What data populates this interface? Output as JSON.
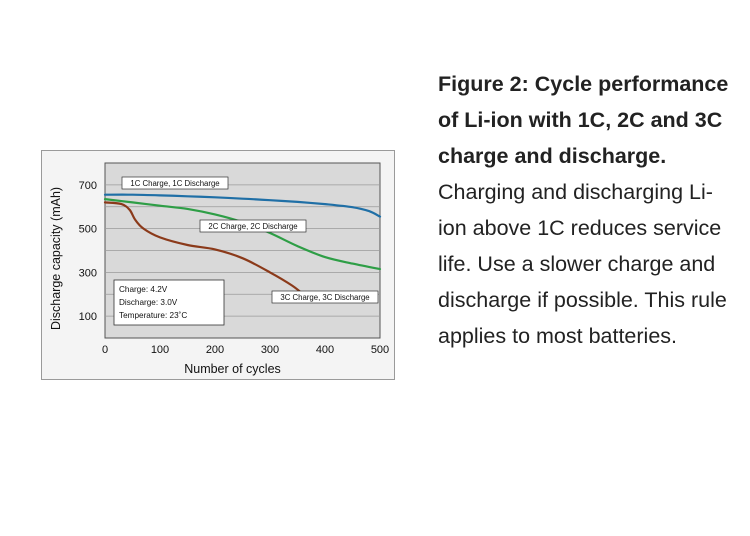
{
  "caption": {
    "bold": "Figure 2: Cycle performance of Li-ion with 1C, 2C and 3C charge and discharge.",
    "body": "Charging and discharging Li-ion above 1C reduces service life. Use a slower charge and discharge if possible. This rule applies to most batteries."
  },
  "chart_data": {
    "type": "line",
    "xlabel": "Number of cycles",
    "ylabel": "Discharge capacity (mAh)",
    "xlim": [
      0,
      500
    ],
    "ylim": [
      0,
      800
    ],
    "xticks": [
      0,
      100,
      200,
      300,
      400,
      500
    ],
    "yticks": [
      100,
      300,
      500,
      700
    ],
    "grid": true,
    "series": [
      {
        "name": "1C Charge, 1C Discharge",
        "color": "#1f6fa6",
        "x": [
          0,
          50,
          100,
          150,
          200,
          250,
          300,
          350,
          400,
          450,
          480,
          500
        ],
        "y": [
          655,
          655,
          652,
          648,
          643,
          637,
          630,
          622,
          612,
          598,
          580,
          555
        ]
      },
      {
        "name": "2C Charge, 2C Discharge",
        "color": "#2e9e46",
        "x": [
          0,
          50,
          100,
          150,
          200,
          250,
          300,
          350,
          400,
          450,
          500
        ],
        "y": [
          635,
          620,
          605,
          590,
          565,
          530,
          480,
          420,
          370,
          340,
          315
        ]
      },
      {
        "name": "3C Charge, 3C Discharge",
        "color": "#8b3a1a",
        "x": [
          0,
          30,
          45,
          55,
          70,
          100,
          150,
          200,
          250,
          300,
          340,
          365
        ],
        "y": [
          620,
          612,
          585,
          540,
          500,
          460,
          425,
          405,
          365,
          300,
          240,
          190
        ]
      }
    ],
    "annotation": {
      "lines": [
        "Charge: 4.2V",
        "Discharge: 3.0V",
        "Temperature: 23˚C"
      ]
    }
  }
}
